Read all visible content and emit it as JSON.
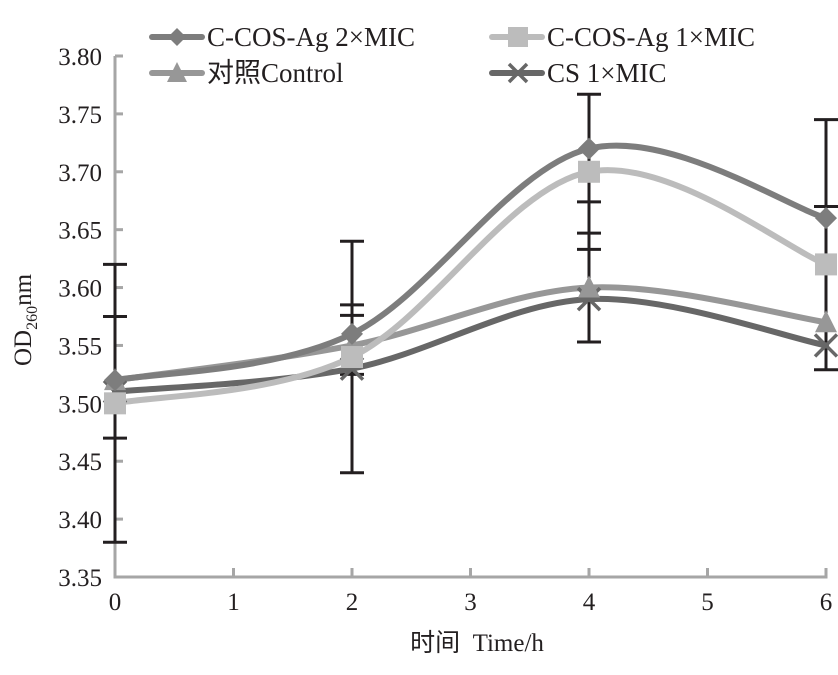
{
  "chart_data": {
    "type": "line",
    "title": "",
    "xlabel": "时间  Time/h",
    "ylabel_main": "OD",
    "ylabel_sub": "260",
    "ylabel_suffix": "nm",
    "xlim": [
      0,
      6
    ],
    "ylim": [
      3.35,
      3.8
    ],
    "x_ticks": [
      "0",
      "1",
      "2",
      "3",
      "4",
      "5",
      "6"
    ],
    "y_ticks": [
      "3.35",
      "3.40",
      "3.45",
      "3.50",
      "3.55",
      "3.60",
      "3.65",
      "3.70",
      "3.75",
      "3.80"
    ],
    "grid": false,
    "legend_position": "top",
    "x": [
      0,
      2,
      4,
      6
    ],
    "series": [
      {
        "name": "C-COS-Ag 2×MIC",
        "marker": "diamond",
        "color": "#7d7d7d",
        "values": [
          3.52,
          3.56,
          3.72,
          3.66
        ]
      },
      {
        "name": "C-COS-Ag 1×MIC",
        "marker": "square",
        "color": "#bcbcbc",
        "values": [
          3.5,
          3.54,
          3.7,
          3.62
        ]
      },
      {
        "name": "对照Control",
        "marker": "triangle",
        "color": "#979797",
        "values": [
          3.52,
          3.55,
          3.6,
          3.57
        ]
      },
      {
        "name": "CS 1×MIC",
        "marker": "x",
        "color": "#676767",
        "values": [
          3.51,
          3.53,
          3.59,
          3.55
        ]
      }
    ],
    "error_bars": [
      {
        "x": 0,
        "low": 3.38,
        "high": 3.62,
        "caps": [
          3.62,
          3.575,
          3.47,
          3.38
        ]
      },
      {
        "x": 2,
        "low": 3.44,
        "high": 3.64,
        "caps": [
          3.64,
          3.585,
          3.576,
          3.525,
          3.44
        ]
      },
      {
        "x": 4,
        "low": 3.553,
        "high": 3.767,
        "caps": [
          3.767,
          3.674,
          3.647,
          3.633,
          3.553
        ]
      },
      {
        "x": 6,
        "low": 3.529,
        "high": 3.745,
        "caps": [
          3.745,
          3.67,
          3.529
        ]
      }
    ],
    "colors": {
      "axis": "#a6a6a6",
      "error_bar": "#231f20",
      "text": "#231f20"
    }
  }
}
